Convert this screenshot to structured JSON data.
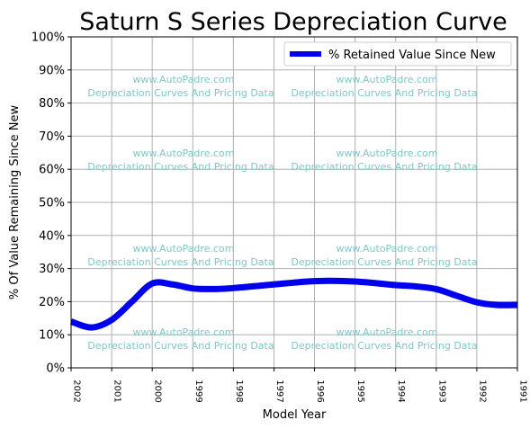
{
  "chart_data": {
    "type": "line",
    "title": "Saturn S Series Depreciation Curve",
    "xlabel": "Model Year",
    "ylabel": "% Of Value Remaining Since New",
    "x_ticks": [
      "2002",
      "2001",
      "2000",
      "1999",
      "1998",
      "1997",
      "1996",
      "1995",
      "1994",
      "1993",
      "1992",
      "1991"
    ],
    "y_ticks": [
      "0%",
      "10%",
      "20%",
      "30%",
      "40%",
      "50%",
      "60%",
      "70%",
      "80%",
      "90%",
      "100%"
    ],
    "ylim": [
      0,
      100
    ],
    "x_range": [
      2002,
      1991
    ],
    "grid": true,
    "legend_position": "top-right",
    "series": [
      {
        "name": "% Retained Value Since New",
        "color": "#0000ee",
        "x": [
          2002,
          2001.5,
          2001,
          2000.5,
          2000,
          1999.5,
          1999,
          1998.5,
          1998,
          1997,
          1996,
          1995,
          1994,
          1993.5,
          1993,
          1992.5,
          1992,
          1991.5,
          1991
        ],
        "y": [
          14,
          12.2,
          14.5,
          20,
          25.5,
          25.2,
          24,
          23.8,
          24.1,
          25.2,
          26.2,
          26.1,
          25,
          24.6,
          23.8,
          21.8,
          19.8,
          19,
          19
        ]
      }
    ]
  },
  "watermark": {
    "line1": "www.AutoPadre.com",
    "line2": "Depreciation Curves And Pricing Data"
  }
}
